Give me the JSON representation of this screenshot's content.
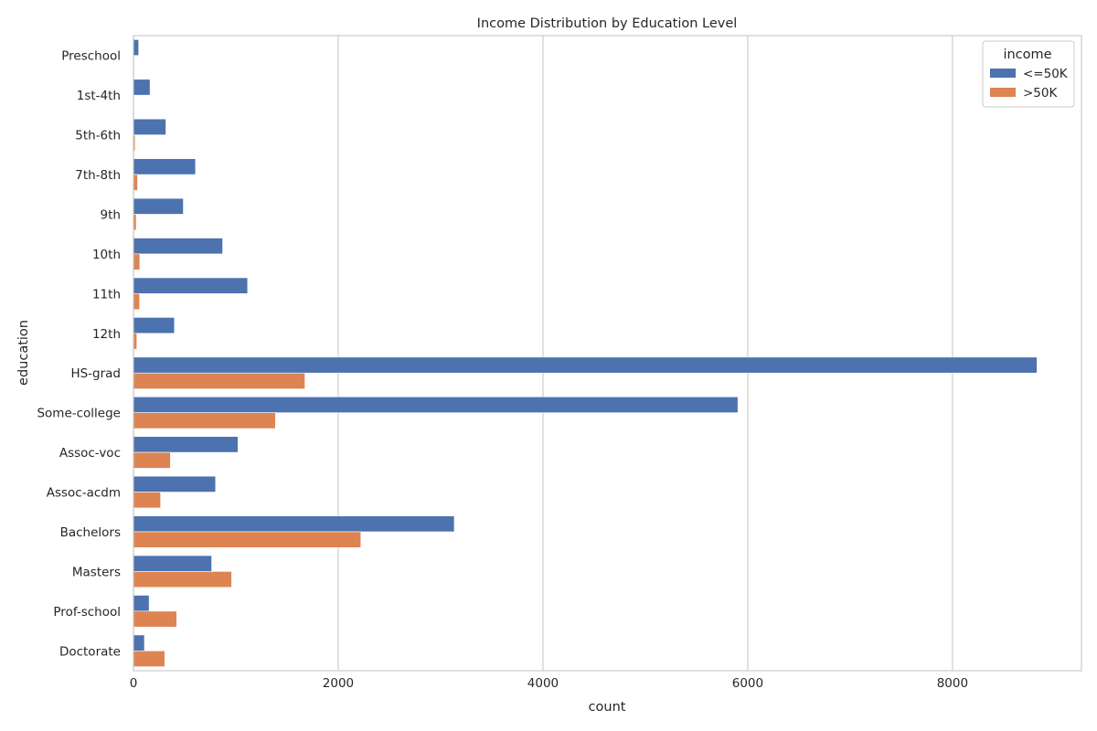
{
  "chart_data": {
    "type": "bar",
    "orientation": "horizontal",
    "title": "Income Distribution by Education Level",
    "xlabel": "count",
    "ylabel": "education",
    "xlim": [
      0,
      9260
    ],
    "xticks": [
      0,
      2000,
      4000,
      6000,
      8000
    ],
    "grid": "vertical",
    "categories": [
      "Preschool",
      "1st-4th",
      "5th-6th",
      "7th-8th",
      "9th",
      "10th",
      "11th",
      "12th",
      "HS-grad",
      "Some-college",
      "Assoc-voc",
      "Assoc-acdm",
      "Bachelors",
      "Masters",
      "Prof-school",
      "Doctorate"
    ],
    "legend": {
      "title": "income",
      "placement": "top-right"
    },
    "series": [
      {
        "name": "<=50K",
        "color": "#4c72b0",
        "values": [
          51,
          162,
          317,
          606,
          487,
          871,
          1115,
          400,
          8826,
          5904,
          1021,
          802,
          3134,
          764,
          153,
          107
        ]
      },
      {
        "name": ">50K",
        "color": "#dd8452",
        "values": [
          0,
          6,
          16,
          40,
          27,
          62,
          60,
          33,
          1675,
          1387,
          361,
          265,
          2221,
          959,
          423,
          306
        ]
      }
    ]
  }
}
